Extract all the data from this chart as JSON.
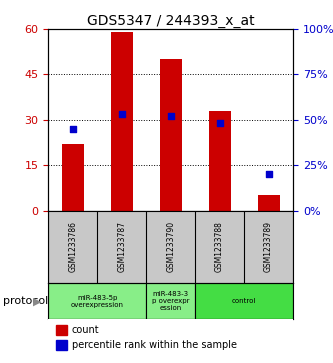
{
  "title": "GDS5347 / 244393_x_at",
  "samples": [
    "GSM1233786",
    "GSM1233787",
    "GSM1233790",
    "GSM1233788",
    "GSM1233789"
  ],
  "count_values": [
    22,
    59,
    50,
    33,
    5
  ],
  "percentile_values": [
    45,
    53,
    52,
    48,
    20
  ],
  "bar_color": "#cc0000",
  "dot_color": "#0000cc",
  "ylim_left": [
    0,
    60
  ],
  "ylim_right": [
    0,
    100
  ],
  "yticks_left": [
    0,
    15,
    30,
    45,
    60
  ],
  "yticks_right": [
    0,
    25,
    50,
    75,
    100
  ],
  "ytick_labels_left": [
    "0",
    "15",
    "30",
    "45",
    "60"
  ],
  "ytick_labels_right": [
    "0%",
    "25%",
    "50%",
    "75%",
    "100%"
  ],
  "sample_bg": "#c8c8c8",
  "group_defs": [
    {
      "indices": [
        0,
        1
      ],
      "label": "miR-483-5p\noverexpression",
      "color": "#88ee88"
    },
    {
      "indices": [
        2
      ],
      "label": "miR-483-3\np overexpr\nession",
      "color": "#88ee88"
    },
    {
      "indices": [
        3,
        4
      ],
      "label": "control",
      "color": "#44dd44"
    }
  ],
  "protocol_label": "protocol",
  "legend_count": "count",
  "legend_pct": "percentile rank within the sample",
  "background_color": "#ffffff",
  "label_color_left": "#cc0000",
  "label_color_right": "#0000cc"
}
